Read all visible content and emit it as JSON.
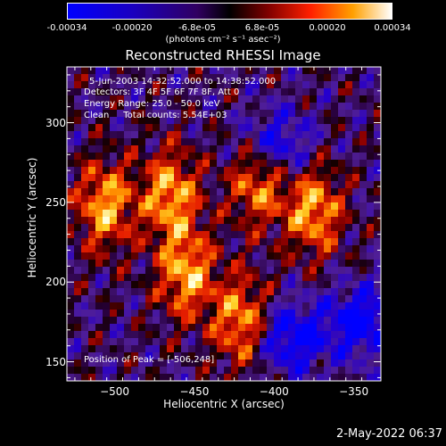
{
  "colorbar": {
    "ticks": [
      "-0.00034",
      "-0.00020",
      "-6.8e-05",
      "6.8e-05",
      "0.00020",
      "0.00034"
    ],
    "label": "(photons cm⁻² s⁻¹ asec⁻²)"
  },
  "chart_data": {
    "type": "heatmap",
    "title": "Reconstructed RHESSI Image",
    "xlabel": "Heliocentric X (arcsec)",
    "ylabel": "Heliocentric Y (arcsec)",
    "xlim": [
      -530,
      -333
    ],
    "ylim": [
      138,
      335
    ],
    "xticks": [
      -500,
      -450,
      -400,
      -350
    ],
    "yticks": [
      150,
      200,
      250,
      300
    ],
    "colorbar_range": [
      -0.00034,
      0.00034
    ],
    "peak": [
      -506,
      248
    ],
    "bright_regions": [
      {
        "x": -506,
        "y": 248
      },
      {
        "x": -465,
        "y": 255
      },
      {
        "x": -455,
        "y": 205
      },
      {
        "x": -410,
        "y": 265
      },
      {
        "x": -375,
        "y": 245
      },
      {
        "x": -420,
        "y": 175
      }
    ],
    "dark_regions": [
      {
        "x": -400,
        "y": 285
      },
      {
        "x": -345,
        "y": 175
      },
      {
        "x": -390,
        "y": 165
      }
    ]
  },
  "annotations": {
    "time_range": "5-Jun-2003 14:32:52.000 to 14:38:52.000",
    "detectors": "Detectors: 3F 4F 5F 6F 7F 8F, Att 0",
    "energy": "Energy Range: 25.0 - 50.0 keV",
    "clean": "Clean     Total counts: 5.54E+03",
    "peak_text": "Position of Peak = [-506,248]"
  },
  "timestamp": "2-May-2022 06:37"
}
